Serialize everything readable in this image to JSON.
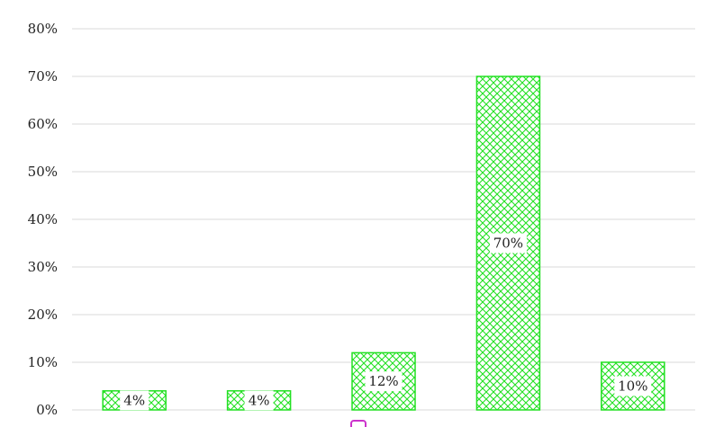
{
  "chart_data": {
    "type": "bar",
    "title": "",
    "xlabel": "",
    "ylabel": "",
    "categories": [
      "",
      "",
      "",
      "",
      ""
    ],
    "values": [
      4,
      4,
      12,
      70,
      10
    ],
    "data_labels": [
      "4%",
      "4%",
      "12%",
      "70%",
      "10%"
    ],
    "ylim": [
      0,
      80
    ],
    "yticks": [
      0,
      10,
      20,
      30,
      40,
      50,
      60,
      70,
      80
    ],
    "ytick_labels": [
      "0%",
      "10%",
      "20%",
      "30%",
      "40%",
      "50%",
      "60%",
      "70%",
      "80%"
    ],
    "grid": true,
    "legend": "bottom-center",
    "colors": {
      "bar_stroke": "#22e022",
      "bar_hatch": "#22e022",
      "grid": "#d9d9d9",
      "legend_marker": "#cc33cc"
    }
  }
}
